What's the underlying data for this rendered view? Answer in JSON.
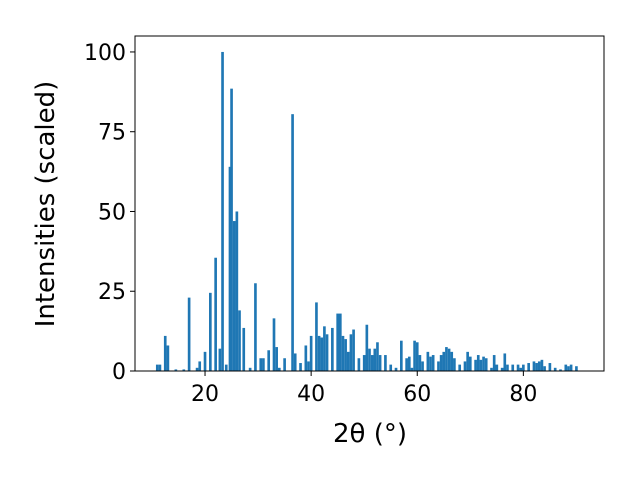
{
  "chart_data": {
    "type": "bar",
    "xlabel": "2θ (°)",
    "ylabel": "Intensities (scaled)",
    "color": "#1f77b4",
    "bar_width": 0.5,
    "x": [
      11,
      11.5,
      12.5,
      13,
      14.5,
      16,
      17,
      18.5,
      19,
      20,
      21,
      22,
      22.8,
      23.3,
      24,
      24.7,
      25,
      25.5,
      26,
      26.5,
      27.3,
      28.5,
      29.5,
      30.5,
      31,
      32,
      33,
      33.5,
      34,
      35,
      36.5,
      37,
      38,
      39,
      39.5,
      40,
      41,
      41.5,
      42,
      42.5,
      43,
      44,
      45,
      45.5,
      46,
      46.5,
      47,
      47.5,
      48,
      49,
      50,
      50.5,
      51,
      51.5,
      52,
      52.5,
      53,
      54,
      55,
      56,
      57,
      58,
      58.5,
      59,
      59.5,
      60,
      60.5,
      61,
      62,
      62.5,
      63,
      64,
      64.5,
      65,
      65.5,
      66,
      66.5,
      67,
      68,
      69,
      69.5,
      70,
      71,
      71.5,
      72,
      72.5,
      73,
      74,
      74.5,
      75,
      76,
      76.5,
      77,
      78,
      79,
      79.5,
      80,
      81,
      82,
      82.5,
      83,
      83.5,
      84,
      85,
      86,
      87,
      88,
      88.5,
      89,
      90
    ],
    "values": [
      2,
      2,
      11,
      8,
      0.5,
      0.5,
      23,
      1,
      3,
      6,
      24.5,
      35.5,
      7,
      100,
      2,
      64,
      88.5,
      47,
      50,
      19,
      13.5,
      1,
      27.5,
      4,
      4,
      6.5,
      16.5,
      7.5,
      1,
      4,
      80.5,
      5.5,
      2.5,
      8,
      3,
      11,
      21.5,
      11,
      10.5,
      14,
      11.5,
      13.5,
      18,
      18,
      11,
      10,
      6,
      11.5,
      13,
      4,
      5,
      14.5,
      7,
      5,
      7,
      9,
      5,
      5,
      2,
      1,
      9.5,
      4,
      4.5,
      1,
      9.5,
      9,
      5,
      3,
      6,
      4.5,
      5,
      3,
      5,
      6,
      7.5,
      7,
      6,
      4,
      2,
      3,
      6,
      4.5,
      3.5,
      5,
      3.5,
      4.5,
      4,
      1,
      5,
      2,
      1,
      5.5,
      2,
      2,
      2,
      1,
      2,
      2.5,
      3,
      2.5,
      3,
      3.5,
      1.5,
      2.5,
      1,
      0.5,
      2,
      1.5,
      2,
      1.5
    ],
    "xlim": [
      6.8,
      95.2
    ],
    "ylim": [
      0,
      105
    ],
    "xticks": [
      20,
      40,
      60,
      80
    ],
    "yticks": [
      0,
      25,
      50,
      75,
      100
    ]
  }
}
